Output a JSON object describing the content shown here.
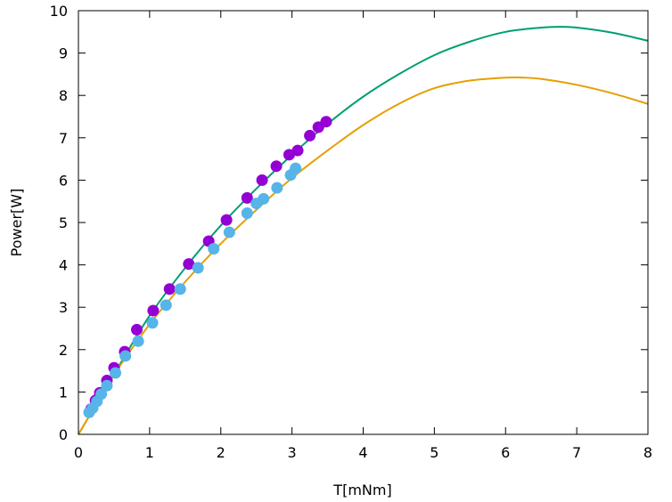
{
  "chart_data": {
    "type": "scatter",
    "title": "",
    "xlabel": "T[mNm]",
    "ylabel": "Power[W]",
    "xlim": [
      0,
      8
    ],
    "ylim": [
      0,
      10
    ],
    "x_ticks": [
      "0",
      "1",
      "2",
      "3",
      "4",
      "5",
      "6",
      "7",
      "8"
    ],
    "y_ticks": [
      "0",
      "1",
      "2",
      "3",
      "4",
      "5",
      "6",
      "7",
      "8",
      "9",
      "10"
    ],
    "grid": false,
    "legend": "none",
    "series": [
      {
        "kind": "points",
        "color": "#9400d3",
        "points": [
          [
            0.18,
            0.6
          ],
          [
            0.24,
            0.8
          ],
          [
            0.3,
            0.98
          ],
          [
            0.4,
            1.27
          ],
          [
            0.5,
            1.57
          ],
          [
            0.65,
            1.95
          ],
          [
            0.82,
            2.47
          ],
          [
            1.05,
            2.92
          ],
          [
            1.28,
            3.43
          ],
          [
            1.55,
            4.02
          ],
          [
            1.83,
            4.56
          ],
          [
            2.08,
            5.06
          ],
          [
            2.37,
            5.58
          ],
          [
            2.58,
            6.0
          ],
          [
            2.78,
            6.33
          ],
          [
            2.96,
            6.6
          ],
          [
            3.08,
            6.7
          ],
          [
            3.25,
            7.05
          ],
          [
            3.37,
            7.25
          ],
          [
            3.48,
            7.38
          ]
        ]
      },
      {
        "kind": "points",
        "color": "#56b4e9",
        "points": [
          [
            0.15,
            0.52
          ],
          [
            0.2,
            0.62
          ],
          [
            0.26,
            0.78
          ],
          [
            0.32,
            0.95
          ],
          [
            0.4,
            1.15
          ],
          [
            0.52,
            1.45
          ],
          [
            0.66,
            1.85
          ],
          [
            0.84,
            2.2
          ],
          [
            1.04,
            2.63
          ],
          [
            1.23,
            3.05
          ],
          [
            1.43,
            3.43
          ],
          [
            1.68,
            3.93
          ],
          [
            1.9,
            4.38
          ],
          [
            2.12,
            4.77
          ],
          [
            2.37,
            5.22
          ],
          [
            2.5,
            5.45
          ],
          [
            2.6,
            5.56
          ],
          [
            2.79,
            5.82
          ],
          [
            2.98,
            6.12
          ],
          [
            3.05,
            6.28
          ]
        ]
      },
      {
        "kind": "line",
        "color": "#009e73",
        "points": [
          [
            0,
            0
          ],
          [
            0.5,
            1.42
          ],
          [
            1,
            2.8
          ],
          [
            1.5,
            3.93
          ],
          [
            2,
            4.93
          ],
          [
            2.5,
            5.8
          ],
          [
            3,
            6.6
          ],
          [
            3.5,
            7.33
          ],
          [
            4,
            7.97
          ],
          [
            4.5,
            8.5
          ],
          [
            5,
            8.95
          ],
          [
            5.5,
            9.27
          ],
          [
            6,
            9.5
          ],
          [
            6.5,
            9.6
          ],
          [
            6.75,
            9.62
          ],
          [
            7,
            9.6
          ],
          [
            7.5,
            9.48
          ],
          [
            8,
            9.29
          ]
        ]
      },
      {
        "kind": "line",
        "color": "#e69f00",
        "points": [
          [
            0,
            0
          ],
          [
            0.5,
            1.4
          ],
          [
            1,
            2.6
          ],
          [
            1.5,
            3.6
          ],
          [
            2,
            4.5
          ],
          [
            2.5,
            5.3
          ],
          [
            3,
            6.05
          ],
          [
            3.5,
            6.7
          ],
          [
            4,
            7.3
          ],
          [
            4.5,
            7.8
          ],
          [
            5,
            8.17
          ],
          [
            5.5,
            8.35
          ],
          [
            6,
            8.42
          ],
          [
            6.25,
            8.42
          ],
          [
            6.5,
            8.39
          ],
          [
            7,
            8.25
          ],
          [
            7.5,
            8.05
          ],
          [
            8,
            7.8
          ]
        ]
      }
    ]
  }
}
